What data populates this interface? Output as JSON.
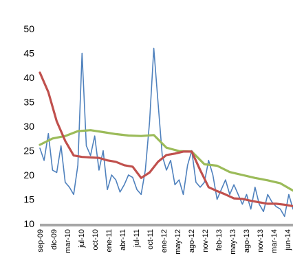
{
  "chart_data": {
    "type": "line",
    "title": "",
    "xlabel": "",
    "ylabel": "",
    "ylim": [
      10,
      50
    ],
    "yticks": [
      10,
      15,
      20,
      25,
      30,
      35,
      40,
      45,
      50
    ],
    "grid": false,
    "legend": "none",
    "xtick_labels": [
      "sep-09",
      "dic-09",
      "mar-10",
      "jul-10",
      "oct-10",
      "ene-11",
      "abr-11",
      "jul-11",
      "oct-11",
      "ene-12",
      "may-12",
      "ago-12",
      "nov-12",
      "feb-13",
      "may-13",
      "ago-13",
      "nov-13",
      "mar-14",
      "jun-14"
    ],
    "series": [
      {
        "color": "#4F81BD",
        "x": [
          0,
          1,
          2,
          3,
          4,
          5,
          6,
          7,
          8,
          9,
          10,
          11,
          12,
          13,
          14,
          15,
          16,
          17,
          18,
          19,
          20,
          21,
          22,
          23,
          24,
          25,
          26,
          27,
          28,
          29,
          30,
          31,
          32,
          33,
          34,
          35,
          36,
          37,
          38,
          39,
          40,
          41,
          42,
          43,
          44,
          45,
          46,
          47,
          48,
          49,
          50,
          51,
          52,
          53,
          54,
          55,
          56,
          57,
          58,
          59,
          60
        ],
        "values": [
          25.5,
          23.0,
          28.5,
          21.0,
          20.5,
          26.0,
          18.5,
          17.5,
          16.0,
          22.0,
          45.0,
          26.0,
          24.0,
          28.0,
          21.0,
          25.0,
          17.0,
          20.0,
          19.0,
          16.5,
          18.0,
          20.0,
          19.5,
          17.0,
          16.0,
          21.0,
          31.0,
          46.0,
          35.0,
          24.0,
          21.0,
          23.0,
          18.0,
          19.0,
          16.0,
          22.0,
          25.0,
          18.5,
          17.5,
          18.5,
          23.0,
          20.0,
          15.0,
          17.0,
          19.0,
          16.0,
          18.0,
          16.0,
          14.0,
          16.0,
          13.0,
          17.5,
          14.0,
          12.5,
          16.0,
          14.5,
          13.5,
          13.0,
          11.5,
          16.0,
          13.0
        ]
      },
      {
        "color": "#9BBB59",
        "x": [
          0,
          3,
          6,
          9,
          12,
          15,
          18,
          21,
          24,
          27,
          30,
          33,
          36,
          39,
          42,
          45,
          48,
          51,
          54,
          57,
          60
        ],
        "values": [
          26.2,
          27.5,
          28.0,
          29.0,
          29.2,
          28.8,
          28.4,
          28.1,
          28.0,
          28.2,
          25.6,
          24.9,
          24.8,
          22.2,
          21.9,
          20.6,
          20.0,
          19.4,
          18.9,
          18.3,
          16.8
        ]
      },
      {
        "color": "#C0504D",
        "x": [
          0,
          2,
          4,
          6,
          8,
          10,
          12,
          14,
          16,
          18,
          20,
          22,
          24,
          26,
          28,
          30,
          32,
          34,
          36,
          38,
          40,
          42,
          44,
          46,
          48,
          50,
          52,
          54,
          56,
          58,
          60
        ],
        "values": [
          41.0,
          37.0,
          31.0,
          27.0,
          24.0,
          23.7,
          23.6,
          23.5,
          23.0,
          22.7,
          22.0,
          21.7,
          19.4,
          20.5,
          22.7,
          24.1,
          24.4,
          24.8,
          24.8,
          21.0,
          17.5,
          16.7,
          16.0,
          15.2,
          15.1,
          14.7,
          14.4,
          14.1,
          14.1,
          13.9,
          13.6
        ]
      }
    ]
  }
}
